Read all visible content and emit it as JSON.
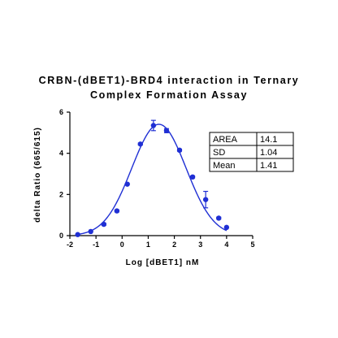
{
  "chart_data": {
    "type": "scatter",
    "title": "CRBN-(dBET1)-BRD4 interaction in Ternary Complex Formation Assay",
    "title_lines": [
      "CRBN-(dBET1)-BRD4 interaction in Ternary",
      "Complex Formation Assay"
    ],
    "xlabel": "Log [dBET1] nM",
    "ylabel": "delta Ratio (665/615)",
    "xlim": [
      -2,
      5
    ],
    "ylim": [
      0,
      6
    ],
    "x_ticks": [
      "-2",
      "-1",
      "0",
      "1",
      "2",
      "3",
      "4",
      "5"
    ],
    "y_ticks": [
      "0",
      "2",
      "4",
      "6"
    ],
    "series": [
      {
        "x": [
          -1.7,
          -1.2,
          -0.7,
          -0.2,
          0.2,
          0.7,
          1.2,
          1.7,
          2.2,
          2.7,
          3.2,
          3.7,
          4.0
        ],
        "y": [
          0.05,
          0.2,
          0.55,
          1.2,
          2.5,
          4.45,
          5.35,
          5.1,
          4.15,
          2.85,
          1.75,
          0.85,
          0.4
        ],
        "error": [
          0,
          0,
          0.05,
          0.05,
          0,
          0.05,
          0.25,
          0.1,
          0.05,
          0.05,
          0.4,
          0.05,
          0
        ]
      }
    ],
    "fit": {
      "type": "gaussian",
      "area": 14.1,
      "sd": 1.04,
      "mean": 1.41
    },
    "color": "#1f2fd4",
    "grid": false,
    "stats_table": {
      "rows": [
        {
          "label": "AREA",
          "value": "14.1"
        },
        {
          "label": "SD",
          "value": "1.04"
        },
        {
          "label": "Mean",
          "value": "1.41"
        }
      ],
      "placement": "top-right"
    }
  }
}
